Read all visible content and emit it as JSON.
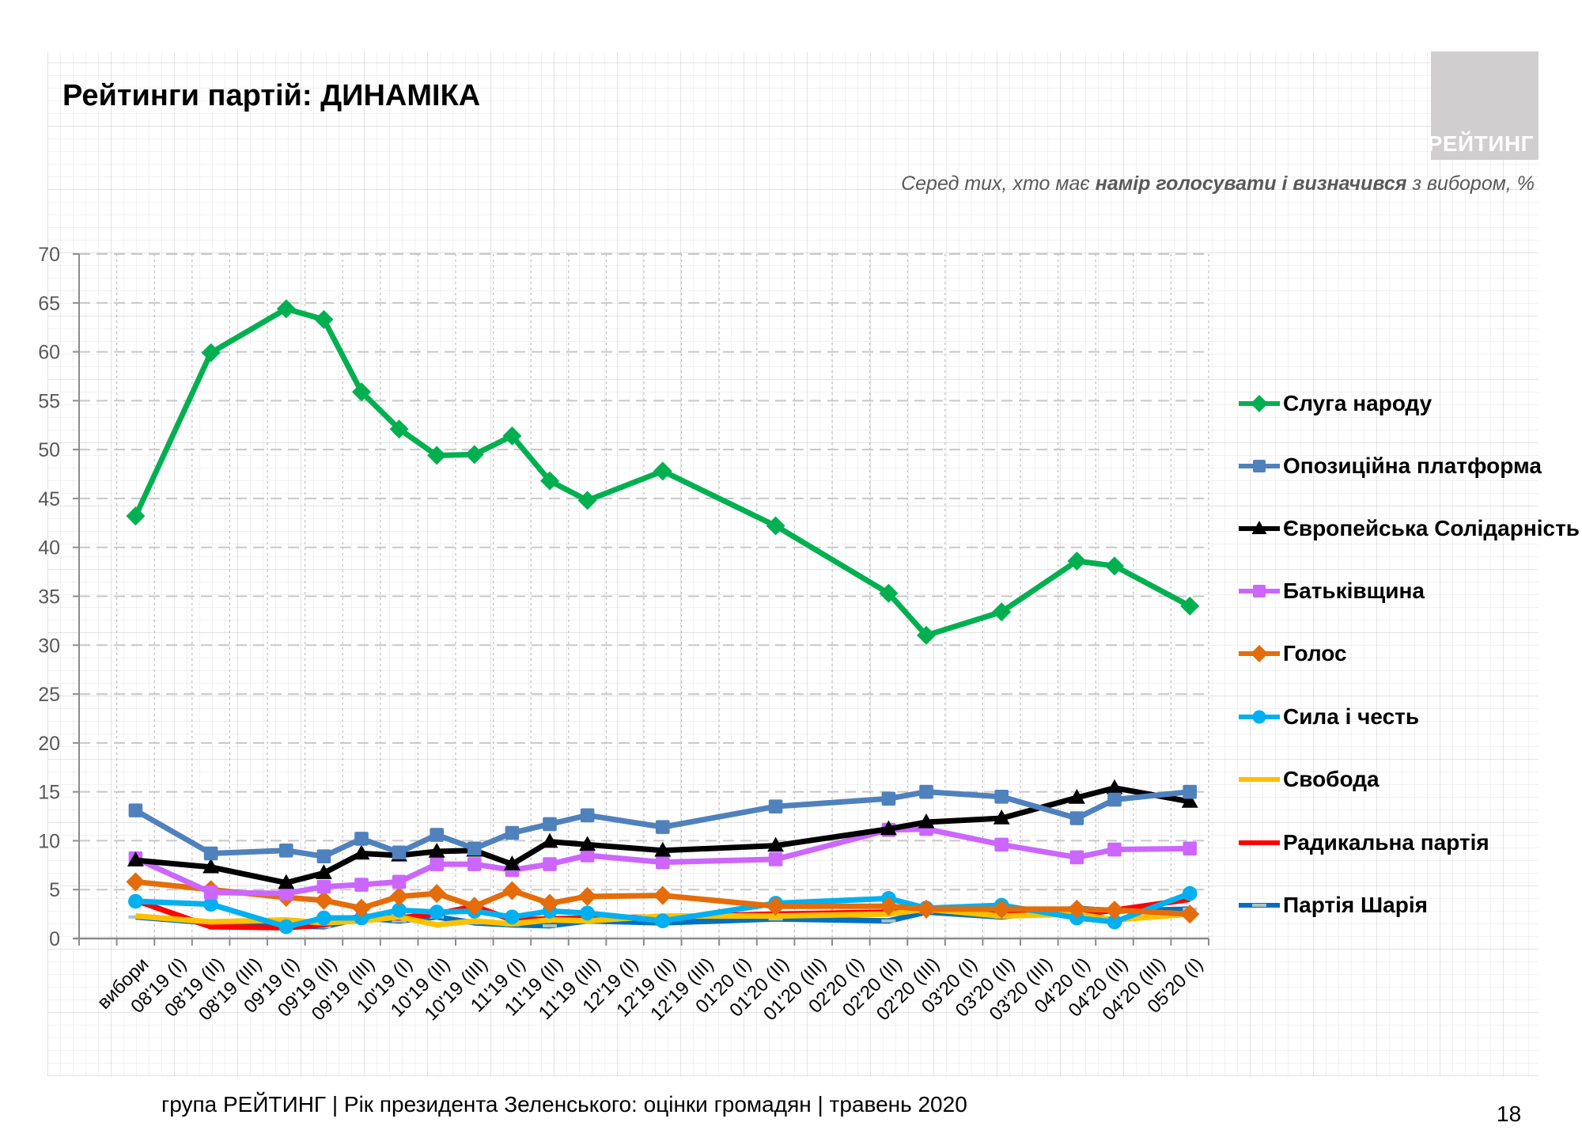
{
  "header": {
    "title": "Рейтинги партій: ДИНАМІКА",
    "logo_text": "РЕЙТИНГ",
    "subtitle_pre": "Серед тих, хто має ",
    "subtitle_bold": "намір голосувати і визначився",
    "subtitle_post": " з вибором, %"
  },
  "footer": {
    "text": "група РЕЙТИНГ |  Рік президента Зеленського: оцінки громадян | травень 2020",
    "page": "18"
  },
  "chart_data": {
    "type": "line",
    "title": "Рейтинги партій: ДИНАМІКА",
    "subtitle": "Серед тих, хто має намір голосувати і визначився з вибором, %",
    "xlabel": "",
    "ylabel": "",
    "ylim": [
      0,
      70
    ],
    "yticks": [
      0,
      5,
      10,
      15,
      20,
      25,
      30,
      35,
      40,
      45,
      50,
      55,
      60,
      65,
      70
    ],
    "grid": true,
    "legend": "right",
    "categories": [
      "вибори",
      "08'19 (I)",
      "08'19 (II)",
      "08'19 (III)",
      "09'19 (I)",
      "09'19 (II)",
      "09'19 (III)",
      "10'19 (I)",
      "10'19 (II)",
      "10'19 (III)",
      "11'19 (I)",
      "11'19 (II)",
      "11'19 (III)",
      "12'19 (I)",
      "12'19 (II)",
      "12'19 (III)",
      "01'20 (I)",
      "01'20 (II)",
      "01'20 (III)",
      "02'20 (I)",
      "02'20 (II)",
      "02'20 (III)",
      "03'20 (I)",
      "03'20 (II)",
      "03'20 (III)",
      "04'20 (I)",
      "04'20 (II)",
      "04'20 (III)",
      "05'20 (I)"
    ],
    "series": [
      {
        "name": "Слуга народу",
        "color": "#00B050",
        "marker": "diamond",
        "values": [
          43.2,
          null,
          59.9,
          null,
          64.4,
          63.3,
          55.9,
          52.1,
          49.4,
          49.5,
          51.4,
          46.8,
          44.8,
          null,
          47.8,
          null,
          null,
          42.2,
          null,
          null,
          35.3,
          31.0,
          null,
          33.4,
          null,
          38.6,
          38.1,
          null,
          34.0
        ]
      },
      {
        "name": "Опозиційна платформа",
        "color": "#4F81BD",
        "marker": "square",
        "values": [
          13.1,
          null,
          8.7,
          null,
          9.0,
          8.4,
          10.2,
          8.8,
          10.6,
          9.2,
          10.8,
          11.7,
          12.6,
          null,
          11.4,
          null,
          null,
          13.5,
          null,
          null,
          14.3,
          15.0,
          null,
          14.5,
          null,
          12.3,
          14.2,
          null,
          15.0
        ]
      },
      {
        "name": "Європейська Солідарність",
        "color": "#000000",
        "marker": "triangle",
        "values": [
          8.0,
          null,
          7.3,
          null,
          5.7,
          6.7,
          8.7,
          8.5,
          8.9,
          9.0,
          7.6,
          9.9,
          9.6,
          null,
          9.0,
          null,
          null,
          9.5,
          null,
          null,
          11.2,
          11.9,
          null,
          12.3,
          null,
          14.4,
          15.4,
          null,
          14.0
        ]
      },
      {
        "name": "Батьківщина",
        "color": "#CC66FF",
        "marker": "square",
        "values": [
          8.2,
          null,
          4.7,
          null,
          4.6,
          5.3,
          5.5,
          5.8,
          7.6,
          7.6,
          7.0,
          7.6,
          8.5,
          null,
          7.8,
          null,
          null,
          8.1,
          null,
          null,
          11.1,
          11.2,
          null,
          9.6,
          null,
          8.3,
          9.1,
          null,
          9.2
        ]
      },
      {
        "name": "Голос",
        "color": "#E46C0A",
        "marker": "diamond",
        "values": [
          5.8,
          null,
          5.0,
          null,
          4.2,
          3.9,
          3.1,
          4.3,
          4.6,
          3.3,
          4.9,
          3.6,
          4.3,
          null,
          4.4,
          null,
          null,
          3.3,
          null,
          null,
          3.3,
          3.0,
          null,
          3.0,
          null,
          3.0,
          2.9,
          null,
          2.5
        ]
      },
      {
        "name": "Сила і честь",
        "color": "#00B0F0",
        "marker": "circle",
        "values": [
          3.8,
          null,
          3.5,
          null,
          1.2,
          2.1,
          2.1,
          2.9,
          2.7,
          2.8,
          2.2,
          2.8,
          2.6,
          null,
          1.8,
          null,
          null,
          3.6,
          null,
          null,
          4.1,
          3.1,
          null,
          3.4,
          null,
          2.1,
          1.7,
          null,
          4.6
        ]
      },
      {
        "name": "Свобода",
        "color": "#FFC000",
        "marker": "none",
        "values": [
          2.3,
          null,
          1.7,
          null,
          1.9,
          1.6,
          1.8,
          2.2,
          1.4,
          1.8,
          1.5,
          1.9,
          1.8,
          null,
          2.3,
          null,
          null,
          2.3,
          null,
          null,
          2.5,
          3.0,
          null,
          2.3,
          null,
          2.5,
          1.9,
          null,
          2.5
        ]
      },
      {
        "name": "Радикальна партія",
        "color": "#FF0000",
        "marker": "none",
        "values": [
          3.9,
          null,
          1.2,
          null,
          1.1,
          1.4,
          2.3,
          2.1,
          2.5,
          3.3,
          1.9,
          2.0,
          2.1,
          null,
          2.2,
          null,
          null,
          2.5,
          null,
          null,
          2.7,
          2.9,
          null,
          2.9,
          null,
          2.4,
          2.9,
          null,
          4.0
        ]
      },
      {
        "name": "Партія Шарія",
        "color": "#0070C0",
        "marker": "dash",
        "values": [
          2.2,
          null,
          1.6,
          null,
          1.3,
          1.2,
          2.1,
          1.8,
          2.2,
          1.6,
          1.4,
          1.3,
          1.8,
          null,
          1.6,
          null,
          null,
          2.0,
          null,
          null,
          1.8,
          2.7,
          null,
          2.2,
          null,
          3.1,
          2.8,
          null,
          3.0
        ]
      }
    ]
  }
}
